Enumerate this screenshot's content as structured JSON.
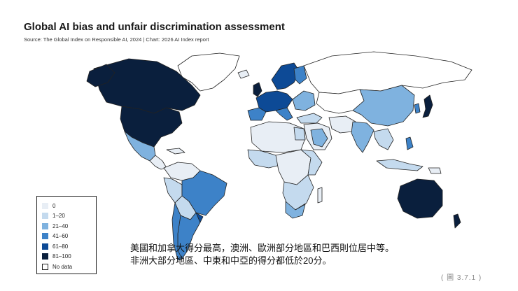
{
  "title": "Global AI bias and unfair discrimination assessment",
  "source": "Source: The Global Index on Responsible AI, 2024  | Chart: 2026 AI Index report",
  "legend": [
    {
      "label": "0",
      "color": "#e8eef5"
    },
    {
      "label": "1–20",
      "color": "#c4daee"
    },
    {
      "label": "21–40",
      "color": "#7fb2df"
    },
    {
      "label": "41–60",
      "color": "#3d82c8"
    },
    {
      "label": "61–80",
      "color": "#0d4a96"
    },
    {
      "label": "81–100",
      "color": "#0a1f3d"
    },
    {
      "label": "No data",
      "color": "#ffffff"
    }
  ],
  "caption": {
    "line1": "美國和加拿大得分最高，澳洲、歐洲部分地區和巴西則位居中等。",
    "line2": "非洲大部分地區、中東和中亞的得分都低於20分。"
  },
  "figure_number": "( 圖 3.7.1 )"
}
